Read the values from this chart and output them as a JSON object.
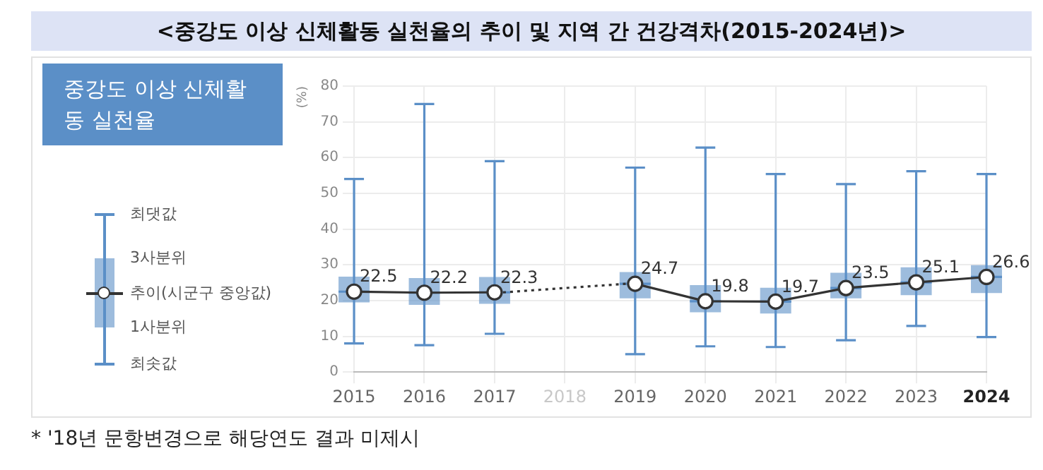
{
  "chart_data": {
    "type": "box",
    "title": "<중강도 이상 신체활동 실천율의 추이 및 지역 간 건강격차(2015-2024년)>",
    "subtitle": "중강도 이상 신체활동 실천율",
    "ylabel": "(%)",
    "categories": [
      "2015",
      "2016",
      "2017",
      "2018",
      "2019",
      "2020",
      "2021",
      "2022",
      "2023",
      "2024"
    ],
    "ylim": [
      0,
      80
    ],
    "yticks": [
      0,
      10,
      20,
      30,
      40,
      50,
      60,
      70,
      80
    ],
    "grid": true,
    "legend": false,
    "marker": "circle",
    "data_labels": true,
    "series": [
      {
        "type": "box",
        "color": "#5b8fc7",
        "boxes": [
          {
            "low": 8,
            "q1": 19.5,
            "median": 22.5,
            "q3": 26.7,
            "high": 54
          },
          {
            "low": 7.5,
            "q1": 18.8,
            "median": 22.2,
            "q3": 26.3,
            "high": 75
          },
          {
            "low": 10.7,
            "q1": 19.1,
            "median": 22.3,
            "q3": 26.6,
            "high": 59
          },
          null,
          {
            "low": 5,
            "q1": 20.6,
            "median": 24.7,
            "q3": 28,
            "high": 57.2
          },
          {
            "low": 7.2,
            "q1": 16.7,
            "median": 19.8,
            "q3": 24.3,
            "high": 62.8
          },
          {
            "low": 7,
            "q1": 16.4,
            "median": 19.7,
            "q3": 23.6,
            "high": 55.4
          },
          {
            "low": 8.9,
            "q1": 20.6,
            "median": 23.5,
            "q3": 27.8,
            "high": 52.6
          },
          {
            "low": 12.9,
            "q1": 21.5,
            "median": 25.1,
            "q3": 29.3,
            "high": 56.2
          },
          {
            "low": 9.8,
            "q1": 22.1,
            "median": 26.6,
            "q3": 29.9,
            "high": 55.4
          }
        ]
      },
      {
        "type": "line",
        "color": "#333333",
        "values": [
          22.5,
          22.2,
          22.3,
          null,
          24.7,
          19.8,
          19.7,
          23.5,
          25.1,
          26.6
        ]
      }
    ],
    "annotations": [
      "최댓값",
      "3사분위",
      "추이(시군구 중앙값)",
      "1사분위",
      "최솟값",
      "* '18년 문항변경으로 해당연도 결과 미제시"
    ]
  }
}
